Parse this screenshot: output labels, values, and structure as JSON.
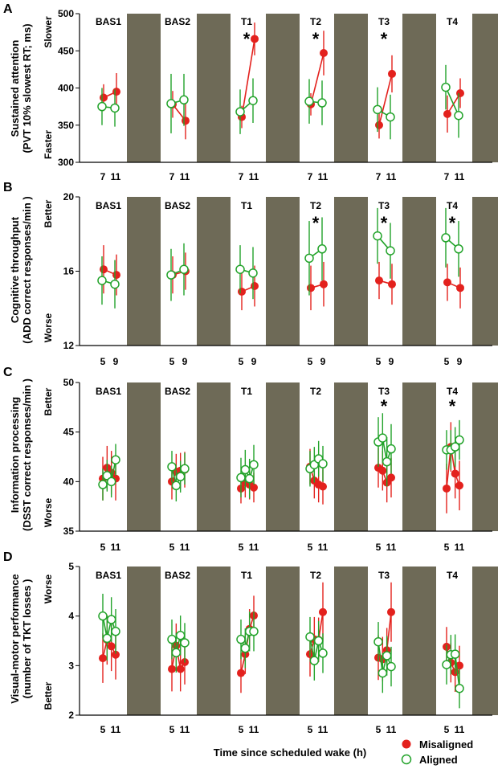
{
  "colors": {
    "misaligned": "#e3211d",
    "aligned": "#22a32a",
    "night": "#6e6a57",
    "axis": "#000000"
  },
  "figure": {
    "xlabel": "Time since scheduled wake (h)",
    "legend": {
      "misaligned": "Misaligned",
      "aligned": "Aligned"
    }
  },
  "chart_data": [
    {
      "type": "line",
      "letter": "A",
      "key": "a",
      "ylabel1": "Sustained attention",
      "ylabel2": "(PVT 10% slowest RT; ms)",
      "side_top": "Slower",
      "side_bottom": "Faster",
      "ylim": [
        300,
        500
      ],
      "yticks": [
        "300",
        "350",
        "400",
        "450",
        "500"
      ],
      "sessions": [
        "BAS1",
        "BAS2",
        "T1",
        "T2",
        "T3",
        "T4"
      ],
      "xtick_labels": [
        "7",
        "11"
      ],
      "stars": [
        false,
        false,
        true,
        true,
        true,
        false
      ],
      "series": [
        {
          "name": "Misaligned",
          "x": [
            7,
            11
          ],
          "values": [
            [
              387,
              395
            ],
            [
              378,
              356
            ],
            [
              361,
              466
            ],
            [
              378,
              447
            ],
            [
              350,
              419
            ],
            [
              365,
              393
            ]
          ],
          "errors": [
            [
              18,
              25
            ],
            [
              18,
              25
            ],
            [
              15,
              22
            ],
            [
              15,
              30
            ],
            [
              18,
              25
            ],
            [
              25,
              20
            ]
          ]
        },
        {
          "name": "Aligned",
          "x": [
            7,
            11
          ],
          "values": [
            [
              375,
              373
            ],
            [
              379,
              384
            ],
            [
              368,
              383
            ],
            [
              382,
              380
            ],
            [
              371,
              361
            ],
            [
              401,
              363
            ]
          ],
          "errors": [
            [
              25,
              25
            ],
            [
              40,
              35
            ],
            [
              30,
              30
            ],
            [
              30,
              30
            ],
            [
              30,
              30
            ],
            [
              30,
              30
            ]
          ]
        }
      ]
    },
    {
      "type": "line",
      "letter": "B",
      "key": "b",
      "ylabel1": "Cognitive throughput",
      "ylabel2": "(ADD correct responses/min )",
      "side_top": "Better",
      "side_bottom": "Worse",
      "ylim": [
        12,
        20
      ],
      "yticks": [
        "12",
        "16",
        "20"
      ],
      "sessions": [
        "BAS1",
        "BAS2",
        "T1",
        "T2",
        "T3",
        "T4"
      ],
      "xtick_labels": [
        "5",
        "9"
      ],
      "stars": [
        false,
        false,
        false,
        true,
        true,
        true
      ],
      "series": [
        {
          "name": "Misaligned",
          "x": [
            5,
            9
          ],
          "values": [
            [
              16.1,
              15.8
            ],
            [
              15.8,
              16.0
            ],
            [
              14.9,
              15.2
            ],
            [
              15.1,
              15.3
            ],
            [
              15.5,
              15.3
            ],
            [
              15.4,
              15.1
            ]
          ],
          "errors": [
            [
              1.3,
              1.1
            ],
            [
              1.0,
              1.0
            ],
            [
              1.0,
              1.1
            ],
            [
              1.2,
              1.2
            ],
            [
              1.0,
              1.1
            ],
            [
              1.0,
              1.1
            ]
          ]
        },
        {
          "name": "Aligned",
          "x": [
            5,
            9
          ],
          "values": [
            [
              15.5,
              15.3
            ],
            [
              15.8,
              16.1
            ],
            [
              16.1,
              15.9
            ],
            [
              16.7,
              17.2
            ],
            [
              17.9,
              17.1
            ],
            [
              17.8,
              17.2
            ]
          ],
          "errors": [
            [
              1.3,
              1.3
            ],
            [
              1.4,
              1.4
            ],
            [
              1.3,
              1.4
            ],
            [
              2.0,
              1.7
            ],
            [
              1.5,
              1.5
            ],
            [
              1.6,
              1.5
            ]
          ]
        }
      ]
    },
    {
      "type": "line",
      "letter": "C",
      "key": "c",
      "ylabel1": "Information processing",
      "ylabel2": "(DSST correct responses/min )",
      "side_top": "Better",
      "side_bottom": "Worse",
      "ylim": [
        35,
        50
      ],
      "yticks": [
        "35",
        "40",
        "45",
        "50"
      ],
      "sessions": [
        "BAS1",
        "BAS2",
        "T1",
        "T2",
        "T3",
        "T4"
      ],
      "xtick_labels": [
        "5",
        "11"
      ],
      "stars": [
        false,
        false,
        false,
        false,
        true,
        true
      ],
      "series": [
        {
          "name": "Misaligned",
          "x": [
            5,
            7,
            9,
            11
          ],
          "values": [
            [
              40.3,
              41.4,
              40.9,
              40.3
            ],
            [
              40.0,
              41.0,
              41.1,
              41.2
            ],
            [
              39.3,
              39.9,
              39.7,
              39.4
            ],
            [
              41.5,
              40.1,
              39.7,
              39.5
            ],
            [
              41.4,
              41.1,
              39.9,
              40.4
            ],
            [
              39.3,
              43.5,
              40.8,
              39.6
            ]
          ],
          "errors": [
            [
              2.2,
              2.2,
              2.2,
              2.2
            ],
            [
              1.8,
              1.8,
              1.8,
              1.8
            ],
            [
              1.5,
              1.5,
              1.5,
              1.5
            ],
            [
              1.8,
              1.8,
              1.8,
              1.8
            ],
            [
              2.0,
              2.0,
              2.0,
              2.0
            ],
            [
              2.5,
              2.5,
              2.5,
              2.5
            ]
          ]
        },
        {
          "name": "Aligned",
          "x": [
            5,
            7,
            9,
            11
          ],
          "values": [
            [
              39.7,
              40.6,
              40.0,
              42.2
            ],
            [
              41.5,
              39.6,
              40.5,
              41.3
            ],
            [
              40.4,
              41.2,
              40.3,
              41.7
            ],
            [
              41.3,
              41.7,
              42.3,
              41.8
            ],
            [
              44.0,
              44.4,
              42.0,
              43.3
            ],
            [
              43.2,
              43.2,
              43.5,
              44.2
            ]
          ],
          "errors": [
            [
              1.6,
              1.6,
              1.6,
              1.6
            ],
            [
              1.6,
              1.6,
              1.6,
              1.6
            ],
            [
              2.0,
              2.0,
              2.0,
              2.0
            ],
            [
              1.8,
              1.8,
              1.8,
              1.8
            ],
            [
              2.5,
              2.5,
              2.5,
              2.5
            ],
            [
              2.0,
              2.0,
              2.0,
              2.0
            ]
          ]
        }
      ]
    },
    {
      "type": "line",
      "letter": "D",
      "key": "d",
      "ylabel1": "Visual-motor performance",
      "ylabel2": "(number of TKT losses )",
      "side_top": "Worse",
      "side_bottom": "Better",
      "ylim": [
        2,
        5
      ],
      "yticks": [
        "2",
        "3",
        "4",
        "5"
      ],
      "sessions": [
        "BAS1",
        "BAS2",
        "T1",
        "T2",
        "T3",
        "T4"
      ],
      "xtick_labels": [
        "5",
        "11"
      ],
      "stars": [
        false,
        false,
        false,
        false,
        false,
        false
      ],
      "series": [
        {
          "name": "Misaligned",
          "x": [
            5,
            7,
            9,
            11
          ],
          "values": [
            [
              3.15,
              3.52,
              3.39,
              3.22
            ],
            [
              2.93,
              3.4,
              2.93,
              3.07
            ],
            [
              2.85,
              3.23,
              3.74,
              4.01
            ],
            [
              3.23,
              3.53,
              3.52,
              4.08
            ],
            [
              3.16,
              3.13,
              3.31,
              4.08
            ],
            [
              3.38,
              3.06,
              2.87,
              3.0
            ]
          ],
          "errors": [
            [
              0.5,
              0.5,
              0.5,
              0.5
            ],
            [
              0.45,
              0.45,
              0.45,
              0.45
            ],
            [
              0.4,
              0.4,
              0.4,
              0.4
            ],
            [
              0.45,
              0.45,
              0.45,
              0.6
            ],
            [
              0.45,
              0.45,
              0.45,
              0.6
            ],
            [
              0.4,
              0.4,
              0.4,
              0.4
            ]
          ]
        },
        {
          "name": "Aligned",
          "x": [
            5,
            7,
            9,
            11
          ],
          "values": [
            [
              4.0,
              3.55,
              3.93,
              3.69
            ],
            [
              3.53,
              3.26,
              3.61,
              3.46
            ],
            [
              3.53,
              3.35,
              3.69,
              3.69
            ],
            [
              3.58,
              3.1,
              3.5,
              3.25
            ],
            [
              3.48,
              2.85,
              3.2,
              2.98
            ],
            [
              3.02,
              3.22,
              3.23,
              2.54
            ]
          ],
          "errors": [
            [
              0.45,
              0.45,
              0.45,
              0.45
            ],
            [
              0.4,
              0.4,
              0.4,
              0.4
            ],
            [
              0.4,
              0.4,
              0.4,
              0.4
            ],
            [
              0.4,
              0.4,
              0.4,
              0.4
            ],
            [
              0.4,
              0.4,
              0.4,
              0.4
            ],
            [
              0.4,
              0.4,
              0.4,
              0.4
            ]
          ]
        }
      ]
    }
  ]
}
